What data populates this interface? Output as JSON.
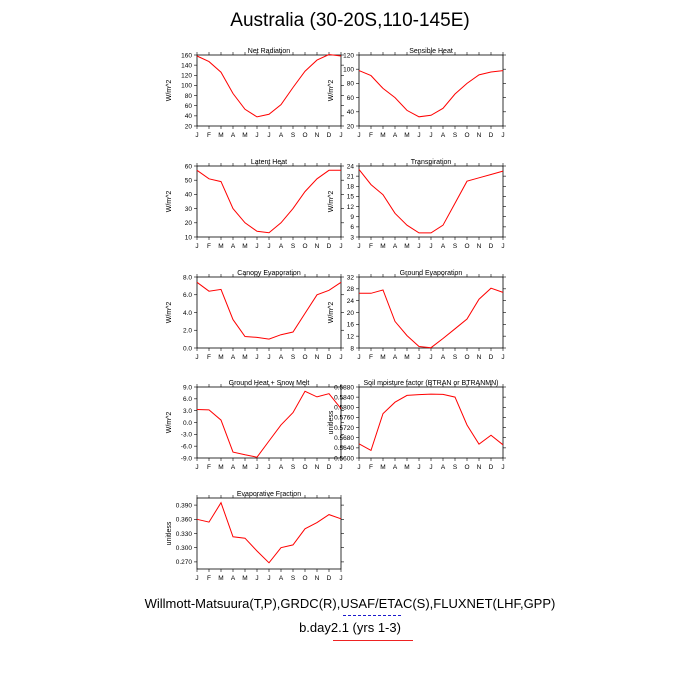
{
  "title": "Australia (30-20S,110-145E)",
  "footer": {
    "observations": "Willmott-Matsuura(T,P),GRDC(R),USAF/ETAC(S),FLUXNET(LHF,GPP)",
    "model": "b.day2.1 (yrs 1-3)"
  },
  "colors": {
    "line": "#ff0000",
    "obs_dash": "#1a1acc",
    "model_dash": "#ee2222"
  },
  "chart_data": [
    {
      "type": "line",
      "title": "Net Radiation",
      "ylabel": "W/m^2",
      "x": [
        "J",
        "F",
        "M",
        "A",
        "M",
        "J",
        "J",
        "A",
        "S",
        "O",
        "N",
        "D",
        "J"
      ],
      "ylim": [
        20,
        160
      ],
      "yticks": [
        "20",
        "40",
        "60",
        "80",
        "100",
        "120",
        "140",
        "160"
      ],
      "values": [
        158,
        147,
        126,
        84,
        53,
        38,
        43,
        62,
        96,
        128,
        150,
        161,
        158
      ]
    },
    {
      "type": "line",
      "title": "Sensible Heat",
      "ylabel": "W/m^2",
      "x": [
        "J",
        "F",
        "M",
        "A",
        "M",
        "J",
        "J",
        "A",
        "S",
        "O",
        "N",
        "D",
        "J"
      ],
      "ylim": [
        20,
        120
      ],
      "yticks": [
        "20",
        "40",
        "60",
        "80",
        "100",
        "120"
      ],
      "values": [
        98,
        91,
        73,
        60,
        42,
        33,
        35,
        45,
        65,
        80,
        92,
        96,
        98
      ]
    },
    {
      "type": "line",
      "title": "Latent Heat",
      "ylabel": "W/m^2",
      "x": [
        "J",
        "F",
        "M",
        "A",
        "M",
        "J",
        "J",
        "A",
        "S",
        "O",
        "N",
        "D",
        "J"
      ],
      "ylim": [
        10,
        60
      ],
      "yticks": [
        "10",
        "20",
        "30",
        "40",
        "50",
        "60"
      ],
      "values": [
        57,
        51,
        49,
        30,
        20,
        14,
        13,
        20,
        30,
        42,
        51,
        57,
        57
      ]
    },
    {
      "type": "line",
      "title": "Transpiration",
      "ylabel": "W/m^2",
      "x": [
        "J",
        "F",
        "M",
        "A",
        "M",
        "J",
        "J",
        "A",
        "S",
        "O",
        "N",
        "D",
        "J"
      ],
      "ylim": [
        3,
        24
      ],
      "yticks": [
        "3",
        "6",
        "9",
        "12",
        "15",
        "18",
        "21",
        "24"
      ],
      "values": [
        23,
        18.5,
        15.5,
        10,
        6.5,
        4.2,
        4.2,
        6.5,
        13,
        19.5,
        20.5,
        21.5,
        22.5
      ]
    },
    {
      "type": "line",
      "title": "Canopy Evaporation",
      "ylabel": "W/m^2",
      "x": [
        "J",
        "F",
        "M",
        "A",
        "M",
        "J",
        "J",
        "A",
        "S",
        "O",
        "N",
        "D",
        "J"
      ],
      "ylim": [
        0,
        8
      ],
      "yticks": [
        "0.0",
        "2.0",
        "4.0",
        "6.0",
        "8.0"
      ],
      "values": [
        7.4,
        6.4,
        6.6,
        3.2,
        1.3,
        1.2,
        1.0,
        1.5,
        1.8,
        3.9,
        6.0,
        6.5,
        7.4
      ]
    },
    {
      "type": "line",
      "title": "Ground Evaporation",
      "ylabel": "W/m^2",
      "x": [
        "J",
        "F",
        "M",
        "A",
        "M",
        "J",
        "J",
        "A",
        "S",
        "O",
        "N",
        "D",
        "J"
      ],
      "ylim": [
        8,
        32
      ],
      "yticks": [
        "8",
        "12",
        "16",
        "20",
        "24",
        "28",
        "32"
      ],
      "values": [
        26.5,
        26.5,
        27.6,
        17,
        12.2,
        8.5,
        8.1,
        11.2,
        14.5,
        17.8,
        24.5,
        28.2,
        26.8
      ]
    },
    {
      "type": "line",
      "title": "Ground Heat + Snow Melt",
      "ylabel": "W/m^2",
      "x": [
        "J",
        "F",
        "M",
        "A",
        "M",
        "J",
        "J",
        "A",
        "S",
        "O",
        "N",
        "D",
        "J"
      ],
      "ylim": [
        -9,
        9
      ],
      "yticks": [
        "-9.0",
        "-6.0",
        "-3.0",
        "0.0",
        "3.0",
        "6.0",
        "9.0"
      ],
      "values": [
        3.3,
        3.2,
        0.6,
        -7.5,
        -8.2,
        -8.8,
        -4.7,
        -0.6,
        2.5,
        7.9,
        6.5,
        7.3,
        3.5
      ]
    },
    {
      "type": "line",
      "title": "Soil moisture factor (BTRAN or BTRANMN)",
      "ylabel": "unitless",
      "x": [
        "J",
        "F",
        "M",
        "A",
        "M",
        "J",
        "J",
        "A",
        "S",
        "O",
        "N",
        "D",
        "J"
      ],
      "ylim": [
        0.56,
        0.588
      ],
      "yticks": [
        "0.5600",
        "0.5640",
        "0.5680",
        "0.5720",
        "0.5760",
        "0.5800",
        "0.5840",
        "0.5880"
      ],
      "values": [
        0.5656,
        0.563,
        0.5775,
        0.582,
        0.5847,
        0.585,
        0.5852,
        0.5851,
        0.584,
        0.573,
        0.5655,
        0.569,
        0.5652
      ]
    },
    {
      "type": "line",
      "title": "Evaporative Fraction",
      "ylabel": "unitless",
      "x": [
        "J",
        "F",
        "M",
        "A",
        "M",
        "J",
        "J",
        "A",
        "S",
        "O",
        "N",
        "D",
        "J"
      ],
      "ylim": [
        0.255,
        0.405
      ],
      "yticks": [
        "0.270",
        "0.300",
        "0.330",
        "0.360",
        "0.390"
      ],
      "values": [
        0.36,
        0.354,
        0.395,
        0.323,
        0.32,
        0.293,
        0.268,
        0.3,
        0.306,
        0.34,
        0.353,
        0.37,
        0.361
      ]
    }
  ]
}
